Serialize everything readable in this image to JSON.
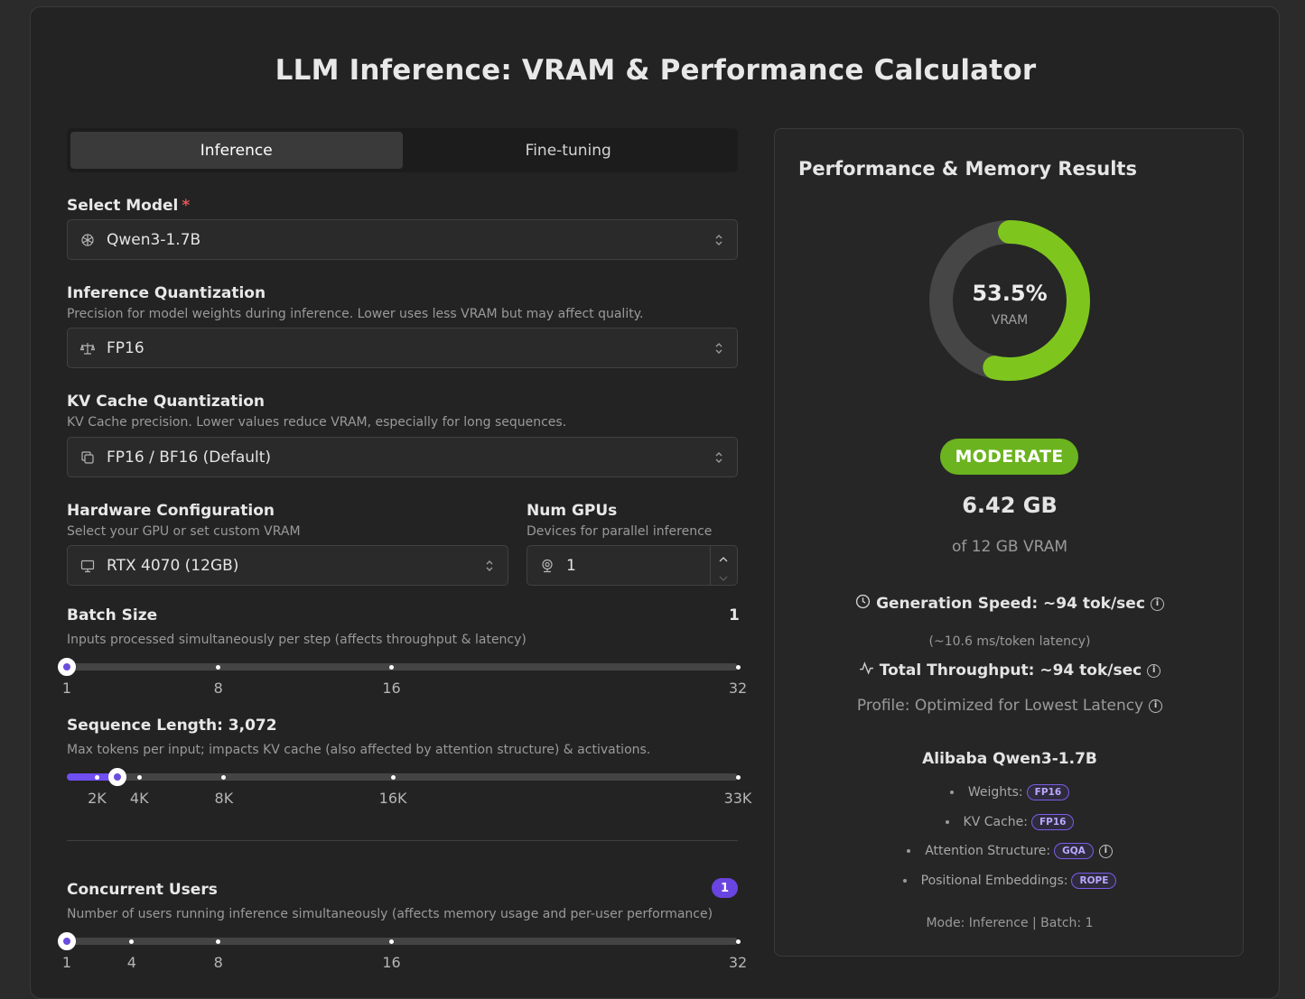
{
  "title": "LLM Inference: VRAM & Performance Calculator",
  "tabs": [
    {
      "label": "Inference",
      "active": true
    },
    {
      "label": "Fine-tuning",
      "active": false
    }
  ],
  "model": {
    "label": "Select Model",
    "required": "*",
    "value": "Qwen3-1.7B",
    "icon": "openai-icon"
  },
  "inference_quant": {
    "label": "Inference Quantization",
    "help": "Precision for model weights during inference. Lower uses less VRAM but may affect quality.",
    "value": "FP16",
    "icon": "scale-icon"
  },
  "kv_quant": {
    "label": "KV Cache Quantization",
    "help": "KV Cache precision. Lower values reduce VRAM, especially for long sequences.",
    "value": "FP16 / BF16 (Default)",
    "icon": "copy-icon"
  },
  "hardware": {
    "label": "Hardware Configuration",
    "help": "Select your GPU or set custom VRAM",
    "value": "RTX 4070 (12GB)",
    "icon": "monitor-icon"
  },
  "gpus": {
    "label": "Num GPUs",
    "help": "Devices for parallel inference",
    "value": "1",
    "icon": "webcam-icon"
  },
  "batch": {
    "label": "Batch Size",
    "value_display": "1",
    "help": "Inputs processed simultaneously per step (affects throughput & latency)",
    "min": 1,
    "max": 32,
    "value": 1,
    "ticks": [
      {
        "v": 1,
        "label": "1"
      },
      {
        "v": 8,
        "label": "8"
      },
      {
        "v": 16,
        "label": "16"
      },
      {
        "v": 32,
        "label": "32"
      }
    ]
  },
  "sequence": {
    "label": "Sequence Length: 3,072",
    "help": "Max tokens per input; impacts KV cache (also affected by attention structure) & activations.",
    "ticks": [
      {
        "p": 0.045,
        "label": "2K"
      },
      {
        "p": 0.108,
        "label": "4K"
      },
      {
        "p": 0.234,
        "label": "8K"
      },
      {
        "p": 0.486,
        "label": "16K"
      },
      {
        "p": 1.0,
        "label": "33K"
      }
    ],
    "fraction": 0.076
  },
  "users": {
    "label": "Concurrent Users",
    "badge": "1",
    "help": "Number of users running inference simultaneously (affects memory usage and per-user performance)",
    "min": 1,
    "max": 32,
    "value": 1,
    "ticks": [
      {
        "v": 1,
        "label": "1"
      },
      {
        "v": 4,
        "label": "4"
      },
      {
        "v": 8,
        "label": "8"
      },
      {
        "v": 16,
        "label": "16"
      },
      {
        "v": 32,
        "label": "32"
      }
    ]
  },
  "results": {
    "title": "Performance & Memory Results",
    "gauge_percent": 53.5,
    "gauge_text": "53.5%",
    "gauge_sub": "VRAM",
    "status": "MODERATE",
    "status_color": "#6bb31f",
    "gauge_color": "#7ec61e",
    "used": "6.42 GB",
    "of_total": "of 12 GB VRAM",
    "gen_speed": "Generation Speed: ~94 tok/sec",
    "latency": "(~10.6 ms/token latency)",
    "throughput": "Total Throughput: ~94 tok/sec",
    "profile": "Profile: Optimized for Lowest Latency",
    "model_name": "Alibaba Qwen3-1.7B",
    "weights_label": "Weights:",
    "weights_pill": "FP16",
    "kv_label": "KV Cache:",
    "kv_pill": "FP16",
    "attn_label": "Attention Structure:",
    "attn_pill": "GQA",
    "pos_label": "Positional Embeddings:",
    "pos_pill": "ROPE",
    "mode": "Mode: Inference | Batch: 1"
  }
}
